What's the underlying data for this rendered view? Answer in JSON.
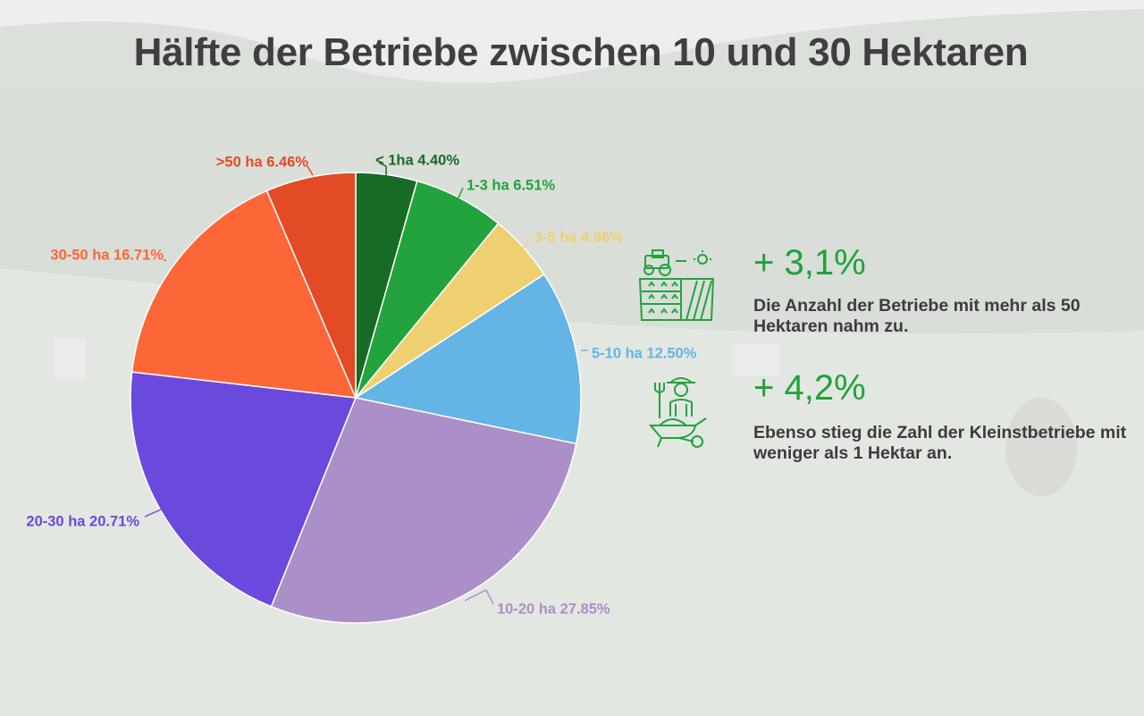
{
  "chart_data": {
    "type": "pie",
    "title": "Hälfte der Betriebe zwischen 10 und 30 Hektaren",
    "slices": [
      {
        "label": "< 1ha",
        "value": 4.4,
        "text": "< 1ha 4.40%",
        "color": "#176b25"
      },
      {
        "label": "1-3 ha",
        "value": 6.51,
        "text": "1-3 ha 6.51%",
        "color": "#22a33d"
      },
      {
        "label": "3-5 ha",
        "value": 4.86,
        "text": "3-5 ha 4.86%",
        "color": "#eed071"
      },
      {
        "label": "5-10 ha",
        "value": 12.5,
        "text": "5-10 ha 12.50%",
        "color": "#64b5e5"
      },
      {
        "label": "10-20 ha",
        "value": 27.85,
        "text": "10-20 ha 27.85%",
        "color": "#ab8fc8"
      },
      {
        "label": "20-30 ha",
        "value": 20.71,
        "text": "20-30 ha 20.71%",
        "color": "#6b49dc"
      },
      {
        "label": "30-50 ha",
        "value": 16.71,
        "text": "30-50 ha 16.71%",
        "color": "#fd6636"
      },
      {
        "label": ">50 ha",
        "value": 6.46,
        "text": ">50 ha 6.46%",
        "color": "#e34a26"
      }
    ]
  },
  "stats": [
    {
      "value": "+ 3,1%",
      "text": "Die Anzahl der Betriebe mit mehr als 50 Hektaren nahm zu.",
      "icon": "tractor-field-icon"
    },
    {
      "value": "+ 4,2%",
      "text": "Ebenso stieg die Zahl der Kleinstbetriebe mit weniger als 1 Hektar an.",
      "icon": "farmer-wheelbarrow-icon"
    }
  ],
  "colors": {
    "accent": "#1fa23a",
    "title": "#3f3f3f",
    "text": "#3c3c3c"
  }
}
